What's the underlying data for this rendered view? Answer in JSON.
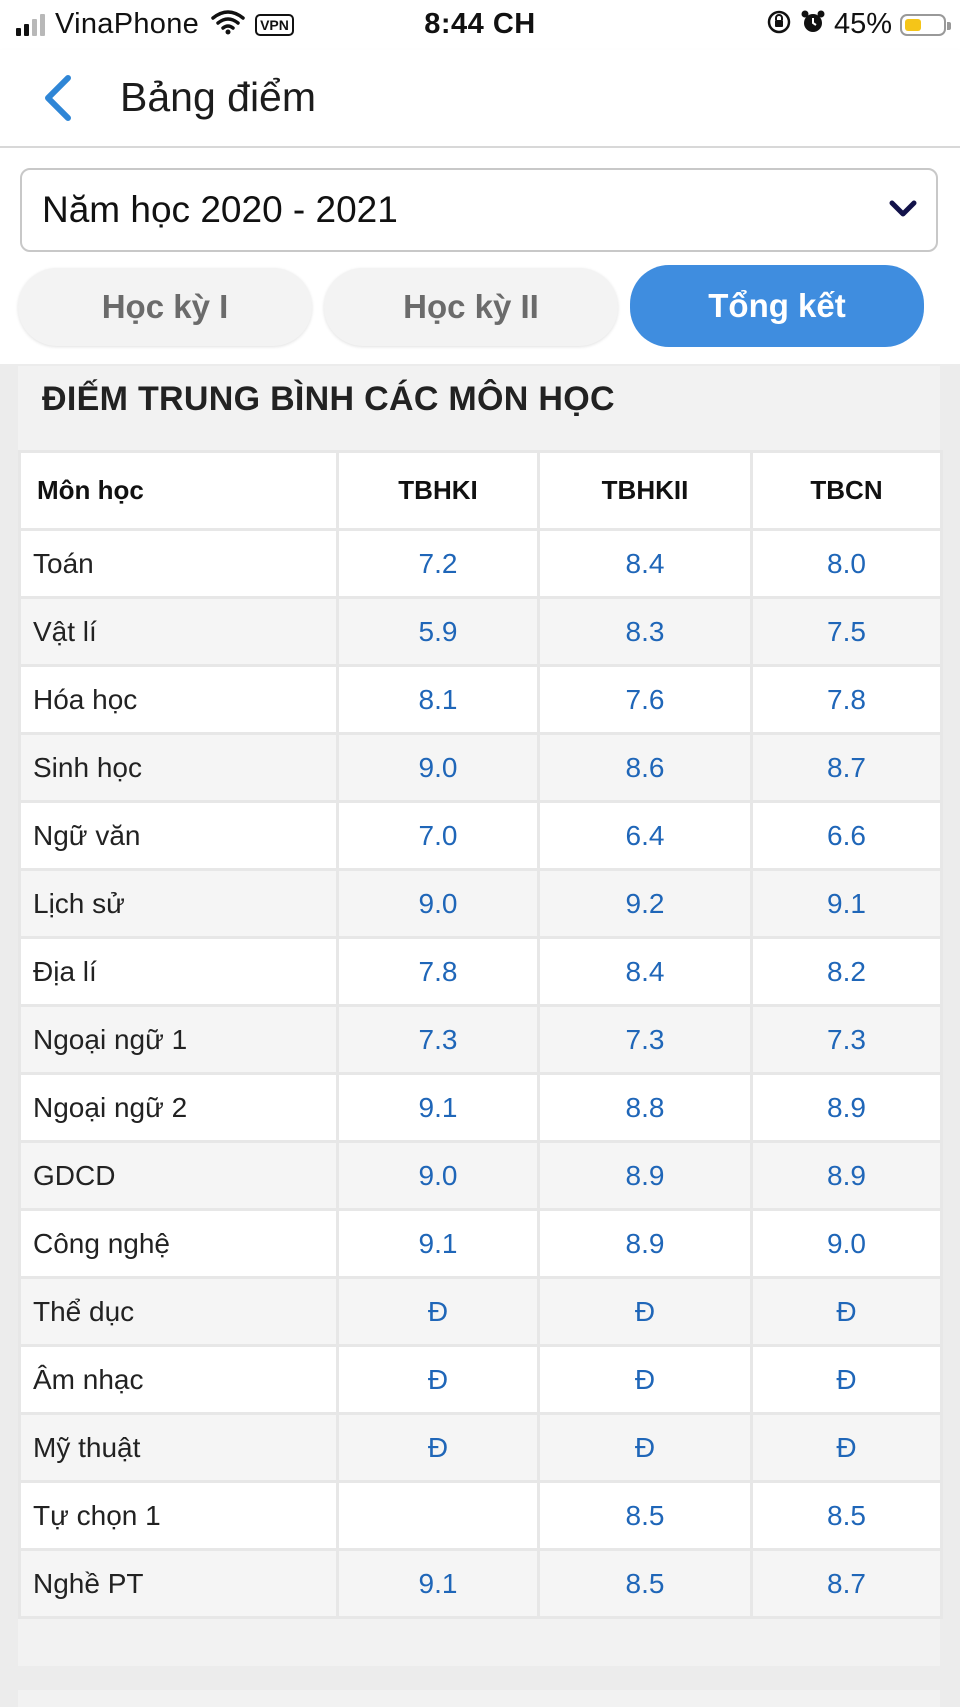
{
  "status_bar": {
    "carrier": "VinaPhone",
    "vpn": "VPN",
    "time": "8:44 CH",
    "battery_percent": "45%",
    "battery_level": 0.45,
    "icons": [
      "signal-icon",
      "wifi-icon",
      "vpn-badge",
      "orientation-lock-icon",
      "alarm-icon",
      "battery-icon"
    ]
  },
  "header": {
    "back_icon": "chevron-left-icon",
    "title": "Bảng điểm"
  },
  "year_select": {
    "value": "Năm học 2020 - 2021",
    "icon": "chevron-down-icon"
  },
  "tabs": [
    {
      "label": "Học kỳ I",
      "active": false
    },
    {
      "label": "Học kỳ II",
      "active": false
    },
    {
      "label": "Tổng kết",
      "active": true
    }
  ],
  "section": {
    "title": "ĐIẾM TRUNG BÌNH CÁC MÔN HỌC"
  },
  "table": {
    "headers": [
      "Môn học",
      "TBHKI",
      "TBHKII",
      "TBCN"
    ],
    "rows": [
      {
        "subject": "Toán",
        "hk1": "7.2",
        "hk2": "8.4",
        "cn": "8.0"
      },
      {
        "subject": "Vật lí",
        "hk1": "5.9",
        "hk2": "8.3",
        "cn": "7.5"
      },
      {
        "subject": "Hóa học",
        "hk1": "8.1",
        "hk2": "7.6",
        "cn": "7.8"
      },
      {
        "subject": "Sinh học",
        "hk1": "9.0",
        "hk2": "8.6",
        "cn": "8.7"
      },
      {
        "subject": "Ngữ văn",
        "hk1": "7.0",
        "hk2": "6.4",
        "cn": "6.6"
      },
      {
        "subject": "Lịch sử",
        "hk1": "9.0",
        "hk2": "9.2",
        "cn": "9.1"
      },
      {
        "subject": "Địa lí",
        "hk1": "7.8",
        "hk2": "8.4",
        "cn": "8.2"
      },
      {
        "subject": "Ngoại ngữ 1",
        "hk1": "7.3",
        "hk2": "7.3",
        "cn": "7.3"
      },
      {
        "subject": "Ngoại ngữ 2",
        "hk1": "9.1",
        "hk2": "8.8",
        "cn": "8.9"
      },
      {
        "subject": "GDCD",
        "hk1": "9.0",
        "hk2": "8.9",
        "cn": "8.9"
      },
      {
        "subject": "Công nghệ",
        "hk1": "9.1",
        "hk2": "8.9",
        "cn": "9.0"
      },
      {
        "subject": "Thể dục",
        "hk1": "Đ",
        "hk2": "Đ",
        "cn": "Đ"
      },
      {
        "subject": "Âm nhạc",
        "hk1": "Đ",
        "hk2": "Đ",
        "cn": "Đ"
      },
      {
        "subject": "Mỹ thuật",
        "hk1": "Đ",
        "hk2": "Đ",
        "cn": "Đ"
      },
      {
        "subject": "Tự chọn 1",
        "hk1": "",
        "hk2": "8.5",
        "cn": "8.5"
      },
      {
        "subject": "Nghề PT",
        "hk1": "9.1",
        "hk2": "8.5",
        "cn": "8.7"
      }
    ]
  },
  "colors": {
    "accent": "#3f8ddf",
    "score_text": "#1f66b8",
    "back_icon": "#2f86d6"
  }
}
